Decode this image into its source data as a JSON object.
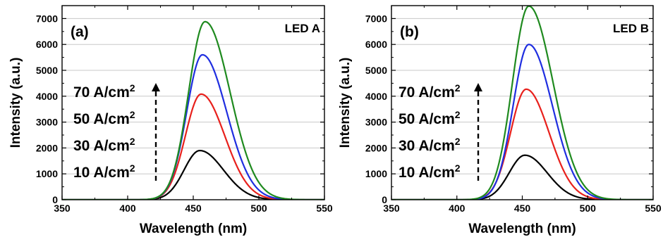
{
  "chart_data": [
    {
      "type": "line",
      "panel_label": "(a)",
      "corner_label": "LED A",
      "xlabel": "Wavelength (nm)",
      "ylabel": "Intensity (a.u.)",
      "xlim": [
        350,
        550
      ],
      "ylim": [
        0,
        7500
      ],
      "xticks": [
        "350",
        "400",
        "450",
        "500",
        "550"
      ],
      "yticks": [
        "0",
        "1000",
        "2000",
        "3000",
        "4000",
        "5000",
        "6000",
        "7000"
      ],
      "grid": "horizontal",
      "annotations": [
        {
          "base": "10 A/cm",
          "sup": "2"
        },
        {
          "base": "30 A/cm",
          "sup": "2"
        },
        {
          "base": "50 A/cm",
          "sup": "2"
        },
        {
          "base": "70 A/cm",
          "sup": "2"
        }
      ],
      "series": [
        {
          "color": "#000000",
          "peak_x": 455,
          "peak_y": 1900,
          "w_left": 12,
          "w_right": 18
        },
        {
          "color": "#e8201c",
          "peak_x": 456,
          "peak_y": 4080,
          "w_left": 12,
          "w_right": 18
        },
        {
          "color": "#1f2ee0",
          "peak_x": 457,
          "peak_y": 5600,
          "w_left": 12,
          "w_right": 18.5
        },
        {
          "color": "#1f8a1f",
          "peak_x": 459,
          "peak_y": 6880,
          "w_left": 12.5,
          "w_right": 19
        }
      ]
    },
    {
      "type": "line",
      "panel_label": "(b)",
      "corner_label": "LED B",
      "xlabel": "Wavelength (nm)",
      "ylabel": "Intensity (a.u.)",
      "xlim": [
        350,
        550
      ],
      "ylim": [
        0,
        7500
      ],
      "xticks": [
        "350",
        "400",
        "450",
        "500",
        "550"
      ],
      "yticks": [
        "0",
        "1000",
        "2000",
        "3000",
        "4000",
        "5000",
        "6000",
        "7000"
      ],
      "grid": "horizontal",
      "annotations": [
        {
          "base": "10 A/cm",
          "sup": "2"
        },
        {
          "base": "30 A/cm",
          "sup": "2"
        },
        {
          "base": "50 A/cm",
          "sup": "2"
        },
        {
          "base": "70 A/cm",
          "sup": "2"
        }
      ],
      "series": [
        {
          "color": "#000000",
          "peak_x": 452,
          "peak_y": 1720,
          "w_left": 12,
          "w_right": 17
        },
        {
          "color": "#e8201c",
          "peak_x": 453,
          "peak_y": 4270,
          "w_left": 12,
          "w_right": 17.5
        },
        {
          "color": "#1f2ee0",
          "peak_x": 455,
          "peak_y": 6000,
          "w_left": 12,
          "w_right": 18
        },
        {
          "color": "#1f8a1f",
          "peak_x": 455,
          "peak_y": 7480,
          "w_left": 12.5,
          "w_right": 18.5
        }
      ]
    }
  ]
}
